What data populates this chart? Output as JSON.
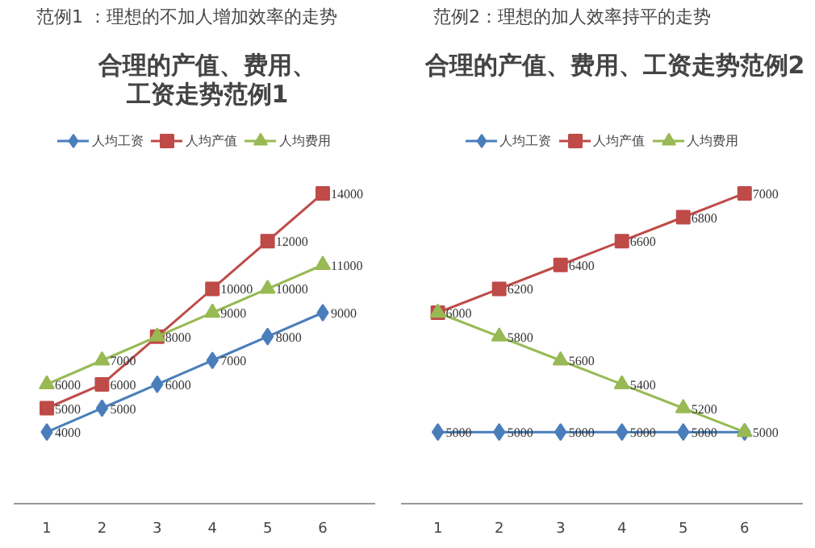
{
  "chart_data": [
    {
      "type": "line",
      "subtitle": "范例1 ：理想的不加人增加效率的走势",
      "title": "合理的产值、费用、工资走势范例1",
      "categories": [
        "1",
        "2",
        "3",
        "4",
        "5",
        "6"
      ],
      "tick_labels": "x",
      "grid": false,
      "legend": "top",
      "line_style": "solid",
      "series": [
        {
          "name": "人均工资",
          "color": "#4a7ebb",
          "marker": "diamond",
          "values": [
            4000,
            5000,
            6000,
            7000,
            8000,
            9000
          ],
          "value_labels": [
            "4000",
            "5000",
            "6000",
            "7000",
            "8000",
            "9000"
          ]
        },
        {
          "name": "人均产值",
          "color": "#be4b48",
          "marker": "square",
          "values": [
            5000,
            6000,
            8000,
            10000,
            12000,
            14000
          ],
          "value_labels": [
            "5000",
            "6000",
            "8000",
            "10000",
            "12000",
            "14000"
          ]
        },
        {
          "name": "人均费用",
          "color": "#98b954",
          "marker": "triangle",
          "values": [
            6000,
            7000,
            8000,
            9000,
            10000,
            11000
          ],
          "value_labels": [
            "6000",
            "7000",
            null,
            "9000",
            "10000",
            "11000"
          ]
        }
      ]
    },
    {
      "type": "line",
      "subtitle": "范例2：理想的加人效率持平的走势",
      "title": "合理的产值、费用、工资走势范例2",
      "categories": [
        "1",
        "2",
        "3",
        "4",
        "5",
        "6"
      ],
      "tick_labels": "x",
      "grid": false,
      "legend": "top",
      "line_style": "solid",
      "series": [
        {
          "name": "人均工资",
          "color": "#4a7ebb",
          "marker": "diamond",
          "values": [
            5000,
            5000,
            5000,
            5000,
            5000,
            5000
          ],
          "value_labels": [
            "5000",
            "5000",
            "5000",
            "5000",
            "5000",
            "5000"
          ]
        },
        {
          "name": "人均产值",
          "color": "#be4b48",
          "marker": "square",
          "values": [
            6000,
            6200,
            6400,
            6600,
            6800,
            7000
          ],
          "value_labels": [
            "6000",
            "6200",
            "6400",
            "6600",
            "6800",
            "7000"
          ]
        },
        {
          "name": "人均费用",
          "color": "#98b954",
          "marker": "triangle",
          "values": [
            6000,
            5800,
            5600,
            5400,
            5200,
            5000
          ],
          "value_labels": [
            null,
            "5800",
            "5600",
            "5400",
            "5200",
            null
          ]
        }
      ]
    }
  ]
}
